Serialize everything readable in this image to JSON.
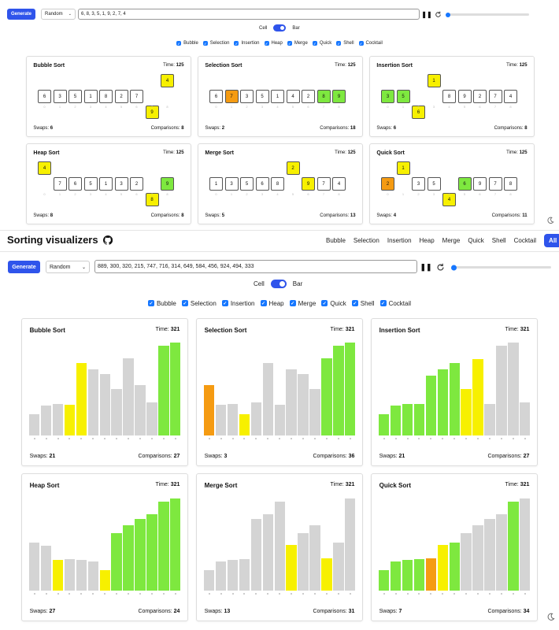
{
  "top": {
    "generate_label": "Generate",
    "mode_value": "Random",
    "array_value": "6, 8, 3, 5, 1, 9, 2, 7, 4",
    "toggle": {
      "left": "Cell",
      "right": "Bar"
    },
    "algorithms": [
      "Bubble",
      "Selection",
      "Insertion",
      "Heap",
      "Merge",
      "Quick",
      "Shell",
      "Cocktail"
    ],
    "time_label": "Time:",
    "swaps_label": "Swaps:",
    "comparisons_label": "Comparisons:",
    "index_labels": [
      "0",
      "1",
      "2",
      "3",
      "4",
      "5",
      "6",
      "7",
      "8"
    ],
    "cards": [
      {
        "title": "Bubble Sort",
        "time": "125",
        "swaps": "6",
        "comparisons": "8",
        "cells": [
          {
            "v": "6",
            "s": "n",
            "r": 0
          },
          {
            "v": "3",
            "s": "n",
            "r": 0
          },
          {
            "v": "5",
            "s": "n",
            "r": 0
          },
          {
            "v": "1",
            "s": "n",
            "r": 0
          },
          {
            "v": "8",
            "s": "n",
            "r": 0
          },
          {
            "v": "2",
            "s": "n",
            "r": 0
          },
          {
            "v": "7",
            "s": "n",
            "r": 0
          },
          {
            "v": "9",
            "s": "c",
            "r": 1
          },
          {
            "v": "4",
            "s": "c",
            "r": -1
          }
        ]
      },
      {
        "title": "Selection Sort",
        "time": "125",
        "swaps": "2",
        "comparisons": "18",
        "cells": [
          {
            "v": "6",
            "s": "n",
            "r": 0
          },
          {
            "v": "7",
            "s": "w",
            "r": 0
          },
          {
            "v": "3",
            "s": "n",
            "r": 0
          },
          {
            "v": "5",
            "s": "n",
            "r": 0
          },
          {
            "v": "1",
            "s": "n",
            "r": 0
          },
          {
            "v": "4",
            "s": "n",
            "r": 0
          },
          {
            "v": "2",
            "s": "n",
            "r": 0
          },
          {
            "v": "8",
            "s": "g",
            "r": 0
          },
          {
            "v": "9",
            "s": "g",
            "r": 0
          }
        ]
      },
      {
        "title": "Insertion Sort",
        "time": "125",
        "swaps": "6",
        "comparisons": "8",
        "cells": [
          {
            "v": "3",
            "s": "g",
            "r": 0
          },
          {
            "v": "5",
            "s": "g",
            "r": 0
          },
          {
            "v": "6",
            "s": "c",
            "r": 1
          },
          {
            "v": "1",
            "s": "c",
            "r": -1
          },
          {
            "v": "8",
            "s": "n",
            "r": 0
          },
          {
            "v": "9",
            "s": "n",
            "r": 0
          },
          {
            "v": "2",
            "s": "n",
            "r": 0
          },
          {
            "v": "7",
            "s": "n",
            "r": 0
          },
          {
            "v": "4",
            "s": "n",
            "r": 0
          }
        ]
      },
      {
        "title": "Heap Sort",
        "time": "125",
        "swaps": "8",
        "comparisons": "8",
        "cells": [
          {
            "v": "4",
            "s": "c",
            "r": -1
          },
          {
            "v": "7",
            "s": "n",
            "r": 0
          },
          {
            "v": "6",
            "s": "n",
            "r": 0
          },
          {
            "v": "5",
            "s": "n",
            "r": 0
          },
          {
            "v": "1",
            "s": "n",
            "r": 0
          },
          {
            "v": "3",
            "s": "n",
            "r": 0
          },
          {
            "v": "2",
            "s": "n",
            "r": 0
          },
          {
            "v": "8",
            "s": "c",
            "r": 1
          },
          {
            "v": "9",
            "s": "g",
            "r": 0
          }
        ]
      },
      {
        "title": "Merge Sort",
        "time": "125",
        "swaps": "5",
        "comparisons": "13",
        "cells": [
          {
            "v": "1",
            "s": "n",
            "r": 0
          },
          {
            "v": "3",
            "s": "n",
            "r": 0
          },
          {
            "v": "5",
            "s": "n",
            "r": 0
          },
          {
            "v": "6",
            "s": "n",
            "r": 0
          },
          {
            "v": "8",
            "s": "n",
            "r": 0
          },
          {
            "v": "2",
            "s": "c",
            "r": -1
          },
          {
            "v": "9",
            "s": "c",
            "r": 0
          },
          {
            "v": "7",
            "s": "n",
            "r": 0
          },
          {
            "v": "4",
            "s": "n",
            "r": 0
          }
        ]
      },
      {
        "title": "Quick Sort",
        "time": "125",
        "swaps": "4",
        "comparisons": "11",
        "cells": [
          {
            "v": "2",
            "s": "w",
            "r": 0
          },
          {
            "v": "1",
            "s": "c",
            "r": -1
          },
          {
            "v": "3",
            "s": "n",
            "r": 0
          },
          {
            "v": "5",
            "s": "n",
            "r": 0
          },
          {
            "v": "4",
            "s": "c",
            "r": 1
          },
          {
            "v": "6",
            "s": "g",
            "r": 0
          },
          {
            "v": "9",
            "s": "n",
            "r": 0
          },
          {
            "v": "7",
            "s": "n",
            "r": 0
          },
          {
            "v": "8",
            "s": "n",
            "r": 0
          }
        ]
      }
    ]
  },
  "header": {
    "title": "Sorting visualizers",
    "nav": [
      "Bubble",
      "Selection",
      "Insertion",
      "Heap",
      "Merge",
      "Quick",
      "Shell",
      "Cocktail",
      "All"
    ]
  },
  "bottom": {
    "generate_label": "Generate",
    "mode_value": "Random",
    "array_value": "889, 300, 320, 215, 747, 716, 314, 649, 584, 456, 924, 494, 333",
    "toggle": {
      "left": "Cell",
      "right": "Bar"
    },
    "algorithms": [
      "Bubble",
      "Selection",
      "Insertion",
      "Heap",
      "Merge",
      "Quick",
      "Shell",
      "Cocktail"
    ],
    "time_label": "Time:",
    "swaps_label": "Swaps:",
    "comparisons_label": "Comparisons:",
    "cards": [
      {
        "title": "Bubble Sort",
        "time": "321",
        "swaps": "21",
        "comparisons": "27",
        "bars": [
          {
            "h": 0.23,
            "s": "n"
          },
          {
            "h": 0.32,
            "s": "n"
          },
          {
            "h": 0.34,
            "s": "n"
          },
          {
            "h": 0.33,
            "s": "c"
          },
          {
            "h": 0.78,
            "s": "c"
          },
          {
            "h": 0.71,
            "s": "n"
          },
          {
            "h": 0.66,
            "s": "n"
          },
          {
            "h": 0.5,
            "s": "n"
          },
          {
            "h": 0.83,
            "s": "n"
          },
          {
            "h": 0.54,
            "s": "n"
          },
          {
            "h": 0.36,
            "s": "n"
          },
          {
            "h": 0.97,
            "s": "g"
          },
          {
            "h": 1.0,
            "s": "g"
          }
        ]
      },
      {
        "title": "Selection Sort",
        "time": "321",
        "swaps": "3",
        "comparisons": "36",
        "bars": [
          {
            "h": 0.54,
            "s": "w"
          },
          {
            "h": 0.33,
            "s": "n"
          },
          {
            "h": 0.34,
            "s": "n"
          },
          {
            "h": 0.23,
            "s": "c"
          },
          {
            "h": 0.36,
            "s": "n"
          },
          {
            "h": 0.78,
            "s": "n"
          },
          {
            "h": 0.33,
            "s": "n"
          },
          {
            "h": 0.71,
            "s": "n"
          },
          {
            "h": 0.66,
            "s": "n"
          },
          {
            "h": 0.5,
            "s": "n"
          },
          {
            "h": 0.83,
            "s": "g"
          },
          {
            "h": 0.97,
            "s": "g"
          },
          {
            "h": 1.0,
            "s": "g"
          }
        ]
      },
      {
        "title": "Insertion Sort",
        "time": "321",
        "swaps": "21",
        "comparisons": "27",
        "bars": [
          {
            "h": 0.23,
            "s": "g"
          },
          {
            "h": 0.32,
            "s": "g"
          },
          {
            "h": 0.34,
            "s": "g"
          },
          {
            "h": 0.34,
            "s": "g"
          },
          {
            "h": 0.64,
            "s": "g"
          },
          {
            "h": 0.71,
            "s": "g"
          },
          {
            "h": 0.78,
            "s": "g"
          },
          {
            "h": 0.5,
            "s": "c"
          },
          {
            "h": 0.82,
            "s": "c"
          },
          {
            "h": 0.34,
            "s": "n"
          },
          {
            "h": 0.97,
            "s": "n"
          },
          {
            "h": 1.0,
            "s": "n"
          },
          {
            "h": 0.36,
            "s": "n"
          }
        ]
      },
      {
        "title": "Heap Sort",
        "time": "321",
        "swaps": "27",
        "comparisons": "24",
        "bars": [
          {
            "h": 0.52,
            "s": "n"
          },
          {
            "h": 0.48,
            "s": "n"
          },
          {
            "h": 0.33,
            "s": "c"
          },
          {
            "h": 0.34,
            "s": "n"
          },
          {
            "h": 0.33,
            "s": "n"
          },
          {
            "h": 0.31,
            "s": "n"
          },
          {
            "h": 0.22,
            "s": "c"
          },
          {
            "h": 0.62,
            "s": "g"
          },
          {
            "h": 0.7,
            "s": "g"
          },
          {
            "h": 0.77,
            "s": "g"
          },
          {
            "h": 0.82,
            "s": "g"
          },
          {
            "h": 0.96,
            "s": "g"
          },
          {
            "h": 0.99,
            "s": "g"
          }
        ]
      },
      {
        "title": "Merge Sort",
        "time": "321",
        "swaps": "13",
        "comparisons": "31",
        "bars": [
          {
            "h": 0.22,
            "s": "n"
          },
          {
            "h": 0.31,
            "s": "n"
          },
          {
            "h": 0.33,
            "s": "n"
          },
          {
            "h": 0.34,
            "s": "n"
          },
          {
            "h": 0.77,
            "s": "n"
          },
          {
            "h": 0.82,
            "s": "n"
          },
          {
            "h": 0.96,
            "s": "n"
          },
          {
            "h": 0.49,
            "s": "c"
          },
          {
            "h": 0.62,
            "s": "n"
          },
          {
            "h": 0.7,
            "s": "n"
          },
          {
            "h": 0.35,
            "s": "c"
          },
          {
            "h": 0.52,
            "s": "n"
          },
          {
            "h": 0.99,
            "s": "n"
          }
        ]
      },
      {
        "title": "Quick Sort",
        "time": "321",
        "swaps": "7",
        "comparisons": "34",
        "bars": [
          {
            "h": 0.22,
            "s": "g"
          },
          {
            "h": 0.31,
            "s": "g"
          },
          {
            "h": 0.33,
            "s": "g"
          },
          {
            "h": 0.34,
            "s": "g"
          },
          {
            "h": 0.35,
            "s": "w"
          },
          {
            "h": 0.49,
            "s": "c"
          },
          {
            "h": 0.52,
            "s": "g"
          },
          {
            "h": 0.62,
            "s": "n"
          },
          {
            "h": 0.7,
            "s": "n"
          },
          {
            "h": 0.77,
            "s": "n"
          },
          {
            "h": 0.82,
            "s": "n"
          },
          {
            "h": 0.96,
            "s": "g"
          },
          {
            "h": 0.99,
            "s": "n"
          }
        ]
      }
    ]
  },
  "colors": {
    "accent": "#2f54eb",
    "sorted": "#7ee83f",
    "compare": "#f7f000",
    "swap": "#f59b12",
    "idle": "#d4d4d4"
  }
}
